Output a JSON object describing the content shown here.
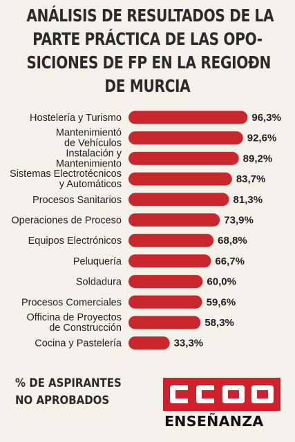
{
  "chart_data": {
    "type": "bar",
    "orientation": "horizontal",
    "title_lines": [
      "ANÁLISIS DE RESULTADOS DE LA",
      "PARTE PRÁCTICA DE LAS OPO-",
      "SICIONES DE FP EN LA REGIOÐN",
      "DE MURCIA"
    ],
    "categories": [
      [
        "Hostelería y Turismo"
      ],
      [
        "Mantenimientó",
        "de Vehículos"
      ],
      [
        "Instalación y",
        "Mantenimiento"
      ],
      [
        "Sistemas Electrotécnicos",
        "y Automáticos"
      ],
      [
        "Procesos Sanitarios"
      ],
      [
        "Operaciones de Proceso"
      ],
      [
        "Equipos Electrónicos"
      ],
      [
        "Peluquería"
      ],
      [
        "Soldadura"
      ],
      [
        "Procesos Comerciales"
      ],
      [
        "Officina de Proyectos",
        "de Construcción"
      ],
      [
        "Cocina y Pastelería"
      ]
    ],
    "values": [
      96.3,
      92.6,
      89.2,
      83.7,
      81.3,
      73.9,
      68.8,
      66.7,
      60.0,
      59.6,
      58.3,
      33.3
    ],
    "value_labels": [
      "96,3%",
      "92,6%",
      "89,2%",
      "83,7%",
      "81,3%",
      "73,9%",
      "68,8%",
      "66,7%",
      "60,0%",
      "59,6%",
      "58,3%",
      "33,3%"
    ],
    "unit": "%",
    "bar_color": "#c8272d",
    "axis_visible": false,
    "grid": false,
    "legend": "none"
  },
  "footer": {
    "label_lines": [
      "% DE ASPIRANTES",
      "NO APROBADOS"
    ]
  },
  "logo": {
    "text": "CCOO",
    "caption": "ENSEÑANZA",
    "color": "#d0202c"
  }
}
